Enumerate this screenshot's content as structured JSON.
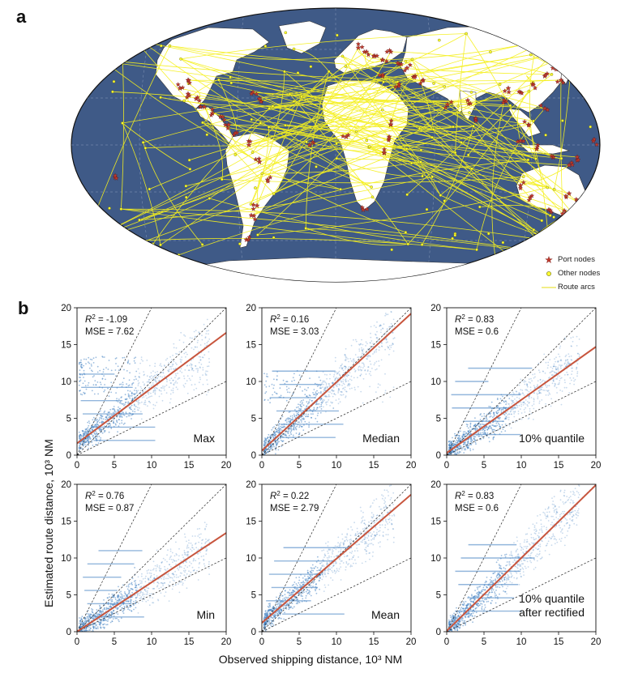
{
  "panel_a_label": "a",
  "panel_b_label": "b",
  "legend": {
    "port_nodes": "Port nodes",
    "other_nodes": "Other nodes",
    "route_arcs": "Route arcs"
  },
  "colors": {
    "ocean": "#3f5a87",
    "land": "#ffffff",
    "route": "#f5f01e",
    "port": "#c0392b",
    "node": "#ffff33",
    "fit_line": "#c8553d",
    "scatter": "#4a86c5"
  },
  "axis_labels": {
    "x": "Observed shipping distance, 10³ NM",
    "y": "Estimated route distance, 10³ NM"
  },
  "chart_data": [
    {
      "type": "scatter",
      "name": "Max",
      "label": "Max",
      "r2": "-1.09",
      "mse": "7.62",
      "fit_slope": 0.75,
      "fit_intercept": 1.6,
      "xlim": [
        0,
        20
      ],
      "ylim": [
        0,
        20
      ],
      "xticks": [
        0,
        5,
        10,
        15,
        20
      ],
      "yticks": [
        0,
        5,
        10,
        15,
        20
      ]
    },
    {
      "type": "scatter",
      "name": "Median",
      "label": "Median",
      "r2": "0.16",
      "mse": "3.03",
      "fit_slope": 0.93,
      "fit_intercept": 0.6,
      "xlim": [
        0,
        20
      ],
      "ylim": [
        0,
        20
      ],
      "xticks": [
        0,
        5,
        10,
        15,
        20
      ],
      "yticks": [
        0,
        5,
        10,
        15,
        20
      ]
    },
    {
      "type": "scatter",
      "name": "10% quantile",
      "label": "10% quantile",
      "r2": "0.83",
      "mse": "0.6",
      "fit_slope": 0.72,
      "fit_intercept": 0.3,
      "xlim": [
        0,
        20
      ],
      "ylim": [
        0,
        20
      ],
      "xticks": [
        0,
        5,
        10,
        15,
        20
      ],
      "yticks": [
        0,
        5,
        10,
        15,
        20
      ]
    },
    {
      "type": "scatter",
      "name": "Min",
      "label": "Min",
      "r2": "0.76",
      "mse": "0.87",
      "fit_slope": 0.67,
      "fit_intercept": 0.0,
      "xlim": [
        0,
        20
      ],
      "ylim": [
        0,
        20
      ],
      "xticks": [
        0,
        5,
        10,
        15,
        20
      ],
      "yticks": [
        0,
        5,
        10,
        15,
        20
      ]
    },
    {
      "type": "scatter",
      "name": "Mean",
      "label": "Mean",
      "r2": "0.22",
      "mse": "2.79",
      "fit_slope": 0.87,
      "fit_intercept": 1.2,
      "xlim": [
        0,
        20
      ],
      "ylim": [
        0,
        20
      ],
      "xticks": [
        0,
        5,
        10,
        15,
        20
      ],
      "yticks": [
        0,
        5,
        10,
        15,
        20
      ]
    },
    {
      "type": "scatter",
      "name": "10% quantile after rectified",
      "label": "10% quantile after rectified",
      "r2": "0.83",
      "mse": "0.6",
      "fit_slope": 0.99,
      "fit_intercept": 0.1,
      "xlim": [
        0,
        20
      ],
      "ylim": [
        0,
        20
      ],
      "xticks": [
        0,
        5,
        10,
        15,
        20
      ],
      "yticks": [
        0,
        5,
        10,
        15,
        20
      ]
    }
  ]
}
